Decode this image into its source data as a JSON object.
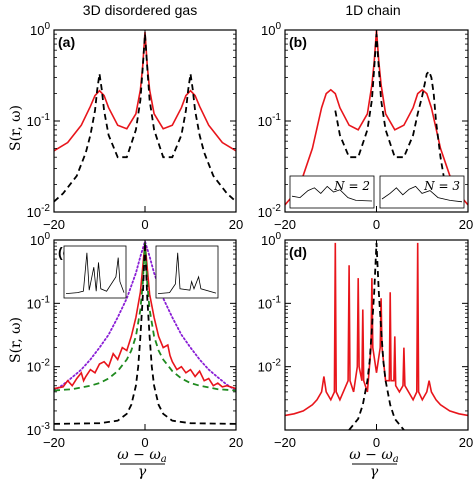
{
  "column_titles": [
    "3D disordered gas",
    "1D chain"
  ],
  "ylabel": "S(r, ω)",
  "xlabel_numerator": "ω − ω",
  "xlabel_sub": "a",
  "xlabel_denominator": "γ",
  "colors": {
    "red": "#e8151b",
    "black": "#000000",
    "green": "#1f8a1f",
    "purple": "#8a1fd6"
  },
  "chart_data": [
    {
      "id": "a",
      "panel_label": "(a)",
      "type": "line",
      "yscale": "log",
      "xlim": [
        -20,
        20
      ],
      "ylim": [
        0.01,
        1
      ],
      "xticks": [
        -20,
        0,
        20
      ],
      "yticks": [
        0.01,
        0.1,
        1
      ],
      "ytick_labels": [
        "10^-2",
        "10^-1",
        "10^0"
      ],
      "series": [
        {
          "style": "solid",
          "color": "red",
          "x": [
            -20,
            -17,
            -14,
            -12,
            -11,
            -10,
            -9,
            -8,
            -6,
            -4,
            -2,
            -1,
            -0.5,
            0,
            0.5,
            1,
            2,
            4,
            6,
            8,
            9,
            10,
            11,
            12,
            14,
            17,
            20
          ],
          "y": [
            0.047,
            0.058,
            0.09,
            0.145,
            0.19,
            0.215,
            0.19,
            0.14,
            0.09,
            0.082,
            0.12,
            0.22,
            0.4,
            0.95,
            0.4,
            0.22,
            0.12,
            0.082,
            0.09,
            0.14,
            0.19,
            0.215,
            0.19,
            0.145,
            0.09,
            0.058,
            0.047
          ]
        },
        {
          "style": "dashed",
          "color": "black",
          "x": [
            -20,
            -18,
            -15,
            -13,
            -12,
            -11,
            -10.5,
            -10,
            -9.5,
            -9,
            -8,
            -6,
            -4,
            -2,
            -1,
            -0.5,
            0,
            0.5,
            1,
            2,
            4,
            6,
            8,
            9,
            9.5,
            10,
            10.5,
            11,
            12,
            13,
            15,
            18,
            20
          ],
          "y": [
            0.013,
            0.016,
            0.025,
            0.045,
            0.07,
            0.13,
            0.22,
            0.33,
            0.22,
            0.13,
            0.07,
            0.04,
            0.04,
            0.08,
            0.17,
            0.38,
            0.9,
            0.38,
            0.17,
            0.08,
            0.04,
            0.04,
            0.07,
            0.13,
            0.22,
            0.33,
            0.22,
            0.13,
            0.07,
            0.045,
            0.025,
            0.016,
            0.013
          ]
        }
      ]
    },
    {
      "id": "b",
      "panel_label": "(b)",
      "type": "line",
      "yscale": "log",
      "xlim": [
        -20,
        20
      ],
      "ylim": [
        0.01,
        1
      ],
      "xticks": [
        -20,
        0,
        20
      ],
      "yticks": [
        0.01,
        0.1,
        1
      ],
      "ytick_labels": [
        "10^-2",
        "10^-1",
        "10^0"
      ],
      "series": [
        {
          "style": "solid",
          "color": "red",
          "x": [
            -20,
            -17,
            -14,
            -12,
            -11,
            -10,
            -9,
            -8,
            -6,
            -4,
            -2,
            -1,
            -0.5,
            0,
            0.5,
            1,
            2,
            4,
            6,
            8,
            9,
            10,
            11,
            12,
            14,
            17,
            20
          ],
          "y": [
            0.012,
            0.018,
            0.05,
            0.14,
            0.2,
            0.22,
            0.2,
            0.14,
            0.09,
            0.08,
            0.12,
            0.25,
            0.45,
            1.0,
            0.45,
            0.25,
            0.12,
            0.08,
            0.09,
            0.14,
            0.2,
            0.22,
            0.2,
            0.14,
            0.05,
            0.018,
            0.012
          ]
        },
        {
          "style": "dashed",
          "color": "black",
          "x": [
            -9,
            -8,
            -6,
            -4,
            -2,
            -1,
            -0.5,
            0,
            0.5,
            1,
            2,
            4,
            6,
            8,
            9,
            10,
            11,
            11.5,
            12,
            12.5,
            13,
            14,
            15,
            16
          ],
          "y": [
            0.13,
            0.07,
            0.04,
            0.04,
            0.08,
            0.17,
            0.38,
            0.9,
            0.38,
            0.17,
            0.08,
            0.04,
            0.04,
            0.07,
            0.12,
            0.19,
            0.33,
            0.35,
            0.3,
            0.2,
            0.1,
            0.04,
            0.02,
            0.012
          ]
        }
      ],
      "insets": [
        {
          "label": "N = 2"
        },
        {
          "label": "N = 3"
        }
      ]
    },
    {
      "id": "c",
      "panel_label": "(c)",
      "type": "line",
      "yscale": "log",
      "xlim": [
        -20,
        20
      ],
      "ylim": [
        0.001,
        1
      ],
      "xticks": [
        -20,
        0,
        20
      ],
      "yticks": [
        0.001,
        0.01,
        0.1,
        1
      ],
      "ytick_labels": [
        "10^-3",
        "10^-2",
        "10^-1",
        "10^0"
      ],
      "series": [
        {
          "style": "dotted",
          "color": "purple",
          "x": [
            -20,
            -18,
            -16,
            -14,
            -12,
            -10,
            -8,
            -6,
            -4,
            -2,
            -1,
            0,
            1,
            2,
            4,
            6,
            8,
            10,
            12,
            14,
            16,
            18,
            20
          ],
          "y": [
            0.0042,
            0.0052,
            0.0068,
            0.009,
            0.013,
            0.02,
            0.032,
            0.06,
            0.12,
            0.3,
            0.55,
            0.95,
            0.55,
            0.3,
            0.12,
            0.06,
            0.032,
            0.02,
            0.013,
            0.009,
            0.0068,
            0.0052,
            0.0042
          ]
        },
        {
          "style": "solid",
          "color": "red",
          "x": [
            -20,
            -18,
            -17,
            -16,
            -15,
            -14,
            -13.5,
            -13,
            -12,
            -11,
            -10,
            -9,
            -8,
            -7,
            -6,
            -5,
            -4,
            -3,
            -2,
            -1,
            0,
            1,
            2,
            3,
            4,
            5,
            5.5,
            6,
            7,
            8,
            9,
            10,
            11,
            12,
            13,
            14,
            15,
            16,
            17,
            18,
            20
          ],
          "y": [
            0.0045,
            0.0048,
            0.006,
            0.005,
            0.0065,
            0.008,
            0.006,
            0.007,
            0.009,
            0.008,
            0.011,
            0.012,
            0.01,
            0.016,
            0.013,
            0.02,
            0.018,
            0.03,
            0.06,
            0.15,
            0.9,
            0.14,
            0.06,
            0.03,
            0.02,
            0.022,
            0.015,
            0.012,
            0.009,
            0.01,
            0.008,
            0.009,
            0.007,
            0.0085,
            0.006,
            0.0065,
            0.005,
            0.0055,
            0.0048,
            0.005,
            0.0045
          ]
        },
        {
          "style": "dashed",
          "color": "green",
          "x": [
            -20,
            -16,
            -12,
            -10,
            -8,
            -6,
            -4,
            -3,
            -2,
            -1,
            -0.5,
            0,
            0.5,
            1,
            2,
            3,
            4,
            6,
            8,
            10,
            12,
            16,
            20
          ],
          "y": [
            0.0042,
            0.0044,
            0.005,
            0.0055,
            0.0065,
            0.0085,
            0.013,
            0.018,
            0.03,
            0.08,
            0.2,
            0.9,
            0.2,
            0.08,
            0.03,
            0.018,
            0.013,
            0.0085,
            0.0065,
            0.0055,
            0.005,
            0.0044,
            0.0042
          ]
        },
        {
          "style": "dashed",
          "color": "black",
          "x": [
            -20,
            -10,
            -6,
            -4,
            -3,
            -2,
            -1.5,
            -1,
            -0.5,
            0,
            0.5,
            1,
            1.5,
            2,
            3,
            4,
            6,
            10,
            20
          ],
          "y": [
            0.00125,
            0.00128,
            0.0014,
            0.0018,
            0.0025,
            0.005,
            0.01,
            0.03,
            0.12,
            0.9,
            0.12,
            0.03,
            0.01,
            0.005,
            0.0025,
            0.0018,
            0.0014,
            0.00128,
            0.00125
          ]
        }
      ]
    },
    {
      "id": "d",
      "panel_label": "(d)",
      "type": "line",
      "yscale": "log",
      "xlim": [
        -20,
        20
      ],
      "ylim": [
        0.001,
        1
      ],
      "xticks": [
        -20,
        0,
        20
      ],
      "yticks": [
        0.01,
        0.1,
        1
      ],
      "ytick_labels": [
        "10^-2",
        "10^-1",
        "10^0"
      ],
      "series": [
        {
          "style": "solid",
          "color": "red",
          "x": [
            -20,
            -18,
            -16,
            -14,
            -13,
            -12,
            -11.5,
            -11,
            -10,
            -9.2,
            -9,
            -8.8,
            -8,
            -6.2,
            -6,
            -5.8,
            -5,
            -4.2,
            -4,
            -3.8,
            -3.2,
            -3,
            -2.8,
            -2,
            -1.2,
            -1,
            -0.8,
            0,
            0.8,
            1,
            1.2,
            2,
            2.8,
            3,
            3.2,
            3.8,
            4,
            4.2,
            5,
            5.8,
            6,
            6.2,
            8,
            8.8,
            9,
            9.2,
            10,
            11,
            11.5,
            12,
            13,
            14,
            16,
            18,
            20
          ],
          "y": [
            0.0017,
            0.0018,
            0.002,
            0.0025,
            0.003,
            0.004,
            0.007,
            0.004,
            0.003,
            0.004,
            0.9,
            0.004,
            0.003,
            0.006,
            0.4,
            0.006,
            0.004,
            0.01,
            0.25,
            0.01,
            0.006,
            0.08,
            0.006,
            0.004,
            0.02,
            0.25,
            0.02,
            0.008,
            0.02,
            0.12,
            0.02,
            0.006,
            0.006,
            0.15,
            0.006,
            0.006,
            0.03,
            0.005,
            0.004,
            0.005,
            0.02,
            0.005,
            0.003,
            0.004,
            0.9,
            0.004,
            0.003,
            0.004,
            0.006,
            0.004,
            0.003,
            0.0025,
            0.002,
            0.0018,
            0.0017
          ]
        },
        {
          "style": "dashed",
          "color": "black",
          "x": [
            -6,
            -4,
            -3,
            -2,
            -1.5,
            -1,
            -0.5,
            0,
            0.5,
            1,
            1.5,
            2,
            3,
            4,
            6
          ],
          "y": [
            0.001,
            0.0015,
            0.0025,
            0.006,
            0.012,
            0.04,
            0.15,
            0.9,
            0.15,
            0.04,
            0.012,
            0.006,
            0.0025,
            0.0015,
            0.001
          ]
        }
      ]
    }
  ]
}
